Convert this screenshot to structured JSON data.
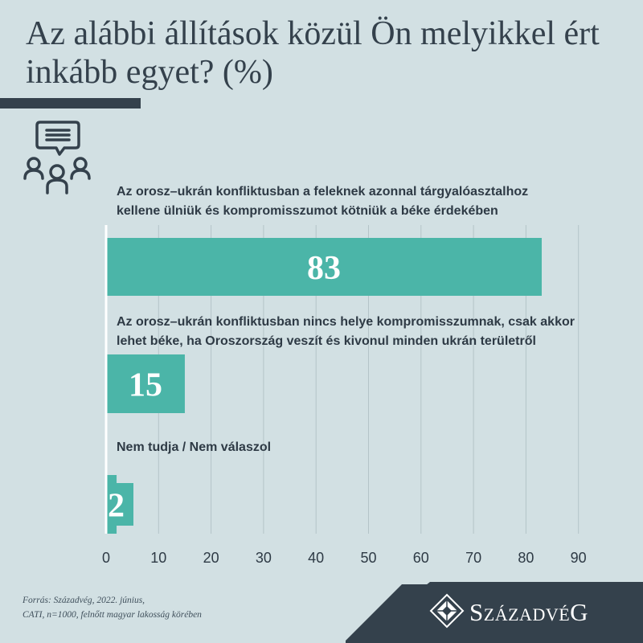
{
  "title": "Az alábbi állítások közül Ön melyikkel ért inkább egyet? (%)",
  "chart_data": {
    "type": "bar",
    "orientation": "horizontal",
    "categories": [
      [
        "Az orosz–ukrán konfliktusban a feleknek azonnal tárgyalóasztalhoz",
        "kellene ülniük és kompromisszumot kötniük a béke érdekében"
      ],
      [
        "Az orosz–ukrán konfliktusban nincs helye kompromisszumnak, csak akkor",
        "lehet béke, ha Oroszország veszít és kivonul minden ukrán területről"
      ],
      [
        "Nem tudja / Nem válaszol"
      ]
    ],
    "values": [
      83,
      15,
      2
    ],
    "xlim": [
      0,
      90
    ],
    "xticks": [
      0,
      10,
      20,
      30,
      40,
      50,
      60,
      70,
      80,
      90
    ],
    "grid": true,
    "bar_color": "#4bb5a8",
    "label_color": "#ffffff"
  },
  "footer": {
    "source_line1": "Forrás: Századvég, 2022. június,",
    "source_line2": "CATI, n=1000, felnőtt magyar lakosság körében"
  },
  "brand": {
    "name": "SZÁZADVÉG",
    "band_color": "#34414c",
    "accent": "#4bb5a8"
  }
}
